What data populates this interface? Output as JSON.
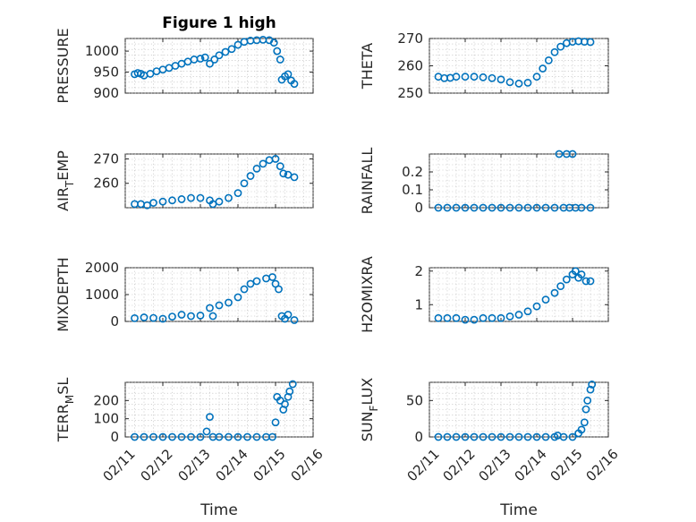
{
  "figure": {
    "title": "Figure 1 high",
    "accent_color": "#0072BD",
    "marker": "open-circle"
  },
  "chart_data": [
    {
      "type": "scatter",
      "ylabel": "PRESSURE",
      "xlabel": "",
      "xlim": [
        "02/11",
        "02/16"
      ],
      "ylim": [
        900,
        1030
      ],
      "yticks": [
        "900",
        "950",
        "1000"
      ],
      "xticks": [
        "02/11",
        "02/12",
        "02/13",
        "02/14",
        "02/15",
        "02/16"
      ],
      "grid": true,
      "points": [
        [
          "02/11 06:00",
          945
        ],
        [
          "02/11 08:00",
          948
        ],
        [
          "02/11 10:00",
          946
        ],
        [
          "02/11 12:00",
          942
        ],
        [
          "02/11 16:00",
          946
        ],
        [
          "02/11 20:00",
          952
        ],
        [
          "02/12 00:00",
          956
        ],
        [
          "02/12 04:00",
          960
        ],
        [
          "02/12 08:00",
          965
        ],
        [
          "02/12 12:00",
          970
        ],
        [
          "02/12 16:00",
          975
        ],
        [
          "02/12 20:00",
          980
        ],
        [
          "02/13 00:00",
          982
        ],
        [
          "02/13 03:00",
          985
        ],
        [
          "02/13 06:00",
          970
        ],
        [
          "02/13 09:00",
          980
        ],
        [
          "02/13 12:00",
          990
        ],
        [
          "02/13 16:00",
          998
        ],
        [
          "02/13 20:00",
          1005
        ],
        [
          "02/14 00:00",
          1015
        ],
        [
          "02/14 04:00",
          1022
        ],
        [
          "02/14 08:00",
          1025
        ],
        [
          "02/14 12:00",
          1026
        ],
        [
          "02/14 16:00",
          1027
        ],
        [
          "02/14 20:00",
          1026
        ],
        [
          "02/14 23:00",
          1020
        ],
        [
          "02/15 01:00",
          1000
        ],
        [
          "02/15 03:00",
          980
        ],
        [
          "02/15 04:00",
          932
        ],
        [
          "02/15 06:00",
          940
        ],
        [
          "02/15 08:00",
          945
        ],
        [
          "02/15 10:00",
          930
        ],
        [
          "02/15 12:00",
          922
        ]
      ]
    },
    {
      "type": "scatter",
      "ylabel": "THETA",
      "xlabel": "",
      "xlim": [
        "02/11",
        "02/16"
      ],
      "ylim": [
        250,
        270
      ],
      "yticks": [
        "250",
        "260",
        "270"
      ],
      "xticks": [
        "02/11",
        "02/12",
        "02/13",
        "02/14",
        "02/15",
        "02/16"
      ],
      "grid": true,
      "points": [
        [
          "02/11 06:00",
          256
        ],
        [
          "02/11 10:00",
          255.5
        ],
        [
          "02/11 14:00",
          255.6
        ],
        [
          "02/11 18:00",
          256
        ],
        [
          "02/12 00:00",
          256
        ],
        [
          "02/12 06:00",
          256
        ],
        [
          "02/12 12:00",
          255.8
        ],
        [
          "02/12 18:00",
          255.5
        ],
        [
          "02/13 00:00",
          255
        ],
        [
          "02/13 06:00",
          254
        ],
        [
          "02/13 12:00",
          253.5
        ],
        [
          "02/13 18:00",
          253.8
        ],
        [
          "02/14 00:00",
          256
        ],
        [
          "02/14 04:00",
          259
        ],
        [
          "02/14 08:00",
          262
        ],
        [
          "02/14 12:00",
          265
        ],
        [
          "02/14 16:00",
          267
        ],
        [
          "02/14 20:00",
          268.3
        ],
        [
          "02/15 00:00",
          268.8
        ],
        [
          "02/15 04:00",
          269
        ],
        [
          "02/15 08:00",
          268.8
        ],
        [
          "02/15 12:00",
          268.7
        ]
      ]
    },
    {
      "type": "scatter",
      "ylabel": "AIR",
      "ylabel_sub": "T",
      "ylabel_rest": "EMP",
      "xlabel": "",
      "xlim": [
        "02/11",
        "02/16"
      ],
      "ylim": [
        250,
        272
      ],
      "yticks": [
        "260",
        "270"
      ],
      "xticks": [
        "02/11",
        "02/12",
        "02/13",
        "02/14",
        "02/15",
        "02/16"
      ],
      "grid": true,
      "points": [
        [
          "02/11 06:00",
          251.5
        ],
        [
          "02/11 10:00",
          251.5
        ],
        [
          "02/11 14:00",
          251
        ],
        [
          "02/11 18:00",
          252
        ],
        [
          "02/12 00:00",
          252.5
        ],
        [
          "02/12 06:00",
          253
        ],
        [
          "02/12 12:00",
          253.5
        ],
        [
          "02/12 18:00",
          254
        ],
        [
          "02/13 00:00",
          254
        ],
        [
          "02/13 06:00",
          253
        ],
        [
          "02/13 08:00",
          251.5
        ],
        [
          "02/13 12:00",
          252.5
        ],
        [
          "02/13 18:00",
          254
        ],
        [
          "02/14 00:00",
          256
        ],
        [
          "02/14 04:00",
          260
        ],
        [
          "02/14 08:00",
          263
        ],
        [
          "02/14 12:00",
          266
        ],
        [
          "02/14 16:00",
          268
        ],
        [
          "02/14 20:00",
          269.5
        ],
        [
          "02/15 00:00",
          270
        ],
        [
          "02/15 03:00",
          267
        ],
        [
          "02/15 05:00",
          264
        ],
        [
          "02/15 08:00",
          263.5
        ],
        [
          "02/15 12:00",
          262.5
        ]
      ]
    },
    {
      "type": "scatter",
      "ylabel": "RAINFALL",
      "xlabel": "",
      "xlim": [
        "02/11",
        "02/16"
      ],
      "ylim": [
        0,
        0.3
      ],
      "yticks": [
        "0",
        "0.1",
        "0.2"
      ],
      "xticks": [
        "02/11",
        "02/12",
        "02/13",
        "02/14",
        "02/15",
        "02/16"
      ],
      "grid": true,
      "points": [
        [
          "02/11 06:00",
          0
        ],
        [
          "02/11 12:00",
          0
        ],
        [
          "02/11 18:00",
          0
        ],
        [
          "02/12 00:00",
          0
        ],
        [
          "02/12 06:00",
          0
        ],
        [
          "02/12 12:00",
          0
        ],
        [
          "02/12 18:00",
          0
        ],
        [
          "02/13 00:00",
          0
        ],
        [
          "02/13 06:00",
          0
        ],
        [
          "02/13 12:00",
          0
        ],
        [
          "02/13 18:00",
          0
        ],
        [
          "02/14 00:00",
          0
        ],
        [
          "02/14 06:00",
          0
        ],
        [
          "02/14 12:00",
          0
        ],
        [
          "02/14 15:00",
          0.3
        ],
        [
          "02/14 18:00",
          0
        ],
        [
          "02/14 20:00",
          0.3
        ],
        [
          "02/14 22:00",
          0
        ],
        [
          "02/15 00:00",
          0.3
        ],
        [
          "02/15 02:00",
          0
        ],
        [
          "02/15 06:00",
          0
        ],
        [
          "02/15 12:00",
          0
        ]
      ]
    },
    {
      "type": "scatter",
      "ylabel": "MIXDEPTH",
      "xlabel": "",
      "xlim": [
        "02/11",
        "02/16"
      ],
      "ylim": [
        0,
        2000
      ],
      "yticks": [
        "0",
        "1000",
        "2000"
      ],
      "xticks": [
        "02/11",
        "02/12",
        "02/13",
        "02/14",
        "02/15",
        "02/16"
      ],
      "grid": true,
      "points": [
        [
          "02/11 06:00",
          120
        ],
        [
          "02/11 12:00",
          150
        ],
        [
          "02/11 18:00",
          130
        ],
        [
          "02/12 00:00",
          100
        ],
        [
          "02/12 06:00",
          180
        ],
        [
          "02/12 12:00",
          250
        ],
        [
          "02/12 18:00",
          200
        ],
        [
          "02/13 00:00",
          220
        ],
        [
          "02/13 06:00",
          500
        ],
        [
          "02/13 08:00",
          200
        ],
        [
          "02/13 12:00",
          600
        ],
        [
          "02/13 18:00",
          700
        ],
        [
          "02/14 00:00",
          900
        ],
        [
          "02/14 04:00",
          1200
        ],
        [
          "02/14 08:00",
          1400
        ],
        [
          "02/14 12:00",
          1500
        ],
        [
          "02/14 18:00",
          1600
        ],
        [
          "02/14 22:00",
          1650
        ],
        [
          "02/15 00:00",
          1400
        ],
        [
          "02/15 02:00",
          1200
        ],
        [
          "02/15 04:00",
          200
        ],
        [
          "02/15 06:00",
          100
        ],
        [
          "02/15 08:00",
          250
        ],
        [
          "02/15 12:00",
          50
        ]
      ]
    },
    {
      "type": "scatter",
      "ylabel": "H2OMIXRA",
      "xlabel": "",
      "xlim": [
        "02/11",
        "02/16"
      ],
      "ylim": [
        0.5,
        2.1
      ],
      "yticks": [
        "1",
        "2"
      ],
      "xticks": [
        "02/11",
        "02/12",
        "02/13",
        "02/14",
        "02/15",
        "02/16"
      ],
      "grid": true,
      "points": [
        [
          "02/11 06:00",
          0.6
        ],
        [
          "02/11 12:00",
          0.6
        ],
        [
          "02/11 18:00",
          0.6
        ],
        [
          "02/12 00:00",
          0.55
        ],
        [
          "02/12 06:00",
          0.55
        ],
        [
          "02/12 12:00",
          0.6
        ],
        [
          "02/12 18:00",
          0.6
        ],
        [
          "02/13 00:00",
          0.6
        ],
        [
          "02/13 06:00",
          0.65
        ],
        [
          "02/13 12:00",
          0.7
        ],
        [
          "02/13 18:00",
          0.8
        ],
        [
          "02/14 00:00",
          0.95
        ],
        [
          "02/14 06:00",
          1.15
        ],
        [
          "02/14 12:00",
          1.35
        ],
        [
          "02/14 16:00",
          1.55
        ],
        [
          "02/14 20:00",
          1.75
        ],
        [
          "02/15 00:00",
          1.9
        ],
        [
          "02/15 02:00",
          2.0
        ],
        [
          "02/15 04:00",
          1.8
        ],
        [
          "02/15 06:00",
          1.9
        ],
        [
          "02/15 09:00",
          1.7
        ],
        [
          "02/15 12:00",
          1.7
        ]
      ]
    },
    {
      "type": "scatter",
      "ylabel": "TERR",
      "ylabel_sub": "M",
      "ylabel_rest": "SL",
      "xlabel": "Time",
      "xlim": [
        "02/11",
        "02/16"
      ],
      "ylim": [
        0,
        300
      ],
      "yticks": [
        "0",
        "100",
        "200"
      ],
      "xticks": [
        "02/11",
        "02/12",
        "02/13",
        "02/14",
        "02/15",
        "02/16"
      ],
      "grid": true,
      "points": [
        [
          "02/11 06:00",
          0
        ],
        [
          "02/11 12:00",
          0
        ],
        [
          "02/11 18:00",
          0
        ],
        [
          "02/12 00:00",
          0
        ],
        [
          "02/12 06:00",
          0
        ],
        [
          "02/12 12:00",
          0
        ],
        [
          "02/12 18:00",
          0
        ],
        [
          "02/13 00:00",
          0
        ],
        [
          "02/13 04:00",
          30
        ],
        [
          "02/13 06:00",
          110
        ],
        [
          "02/13 08:00",
          0
        ],
        [
          "02/13 12:00",
          0
        ],
        [
          "02/13 18:00",
          0
        ],
        [
          "02/14 00:00",
          0
        ],
        [
          "02/14 06:00",
          0
        ],
        [
          "02/14 12:00",
          0
        ],
        [
          "02/14 18:00",
          0
        ],
        [
          "02/14 22:00",
          0
        ],
        [
          "02/15 00:00",
          80
        ],
        [
          "02/15 01:00",
          220
        ],
        [
          "02/15 03:00",
          200
        ],
        [
          "02/15 05:00",
          150
        ],
        [
          "02/15 06:00",
          180
        ],
        [
          "02/15 08:00",
          220
        ],
        [
          "02/15 09:00",
          250
        ],
        [
          "02/15 11:00",
          290
        ]
      ]
    },
    {
      "type": "scatter",
      "ylabel": "SUN",
      "ylabel_sub": "F",
      "ylabel_rest": "LUX",
      "xlabel": "Time",
      "xlim": [
        "02/11",
        "02/16"
      ],
      "ylim": [
        0,
        75
      ],
      "yticks": [
        "0",
        "50"
      ],
      "xticks": [
        "02/11",
        "02/12",
        "02/13",
        "02/14",
        "02/15",
        "02/16"
      ],
      "grid": true,
      "points": [
        [
          "02/11 06:00",
          0
        ],
        [
          "02/11 12:00",
          0
        ],
        [
          "02/11 18:00",
          0
        ],
        [
          "02/12 00:00",
          0
        ],
        [
          "02/12 06:00",
          0
        ],
        [
          "02/12 12:00",
          0
        ],
        [
          "02/12 18:00",
          0
        ],
        [
          "02/13 00:00",
          0
        ],
        [
          "02/13 06:00",
          0
        ],
        [
          "02/13 12:00",
          0
        ],
        [
          "02/13 18:00",
          0
        ],
        [
          "02/14 00:00",
          0
        ],
        [
          "02/14 06:00",
          0
        ],
        [
          "02/14 12:00",
          0
        ],
        [
          "02/14 14:00",
          2
        ],
        [
          "02/14 18:00",
          0
        ],
        [
          "02/15 00:00",
          0
        ],
        [
          "02/15 04:00",
          5
        ],
        [
          "02/15 06:00",
          10
        ],
        [
          "02/15 08:00",
          20
        ],
        [
          "02/15 09:00",
          38
        ],
        [
          "02/15 10:00",
          50
        ],
        [
          "02/15 12:00",
          65
        ],
        [
          "02/15 13:00",
          72
        ]
      ]
    }
  ]
}
